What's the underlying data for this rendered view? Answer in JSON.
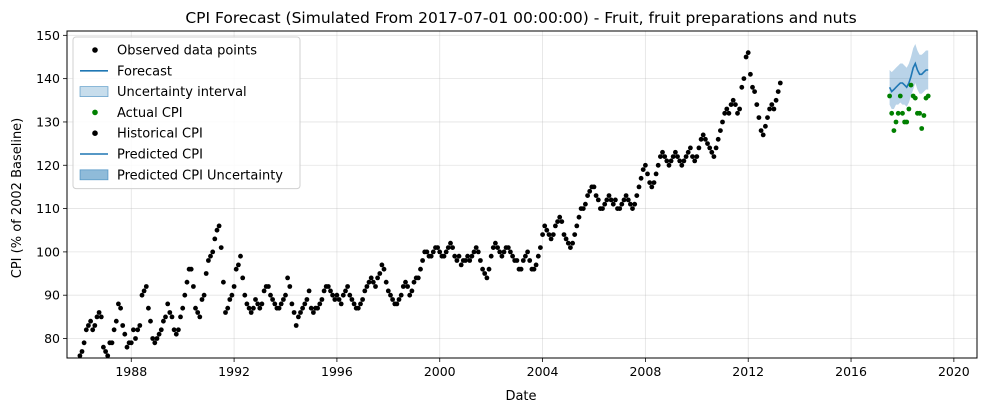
{
  "chart_data": {
    "type": "scatter",
    "title": "CPI Forecast (Simulated From 2017-07-01 00:00:00) - Fruit, fruit preparations and nuts",
    "xlabel": "Date",
    "ylabel": "CPI (% of 2002 Baseline)",
    "xlim": [
      1985.5,
      2020.9
    ],
    "ylim": [
      75.5,
      151
    ],
    "x_ticks": [
      1988,
      1992,
      1996,
      2000,
      2004,
      2008,
      2012,
      2016,
      2020
    ],
    "y_ticks": [
      80,
      90,
      100,
      110,
      120,
      130,
      140,
      150
    ],
    "grid": true,
    "legend_position": "top-left",
    "legend": [
      {
        "label": "Observed data points",
        "kind": "dot",
        "color": "#000000"
      },
      {
        "label": "Forecast",
        "kind": "line",
        "color": "#1f77b4"
      },
      {
        "label": "Uncertainty interval",
        "kind": "patch-light",
        "color": "#1f77b4"
      },
      {
        "label": "Actual CPI",
        "kind": "dot",
        "color": "#008000"
      },
      {
        "label": "Historical CPI",
        "kind": "dot",
        "color": "#000000"
      },
      {
        "label": "Predicted CPI",
        "kind": "line",
        "color": "#1f77b4"
      },
      {
        "label": "Predicted CPI Uncertainty",
        "kind": "patch-dark",
        "color": "#1f77b4"
      }
    ],
    "historical_x_start": 1986.0,
    "historical_x_step": 0.0833333,
    "historical_values": [
      76,
      77,
      79,
      82,
      83,
      84,
      82,
      83,
      85,
      86,
      85,
      78,
      77,
      76,
      79,
      79,
      82,
      84,
      88,
      87,
      83,
      81,
      78,
      79,
      79,
      82,
      80,
      82,
      83,
      90,
      91,
      92,
      87,
      84,
      80,
      79,
      80,
      81,
      82,
      84,
      85,
      88,
      86,
      85,
      82,
      81,
      82,
      85,
      87,
      90,
      93,
      96,
      96,
      92,
      87,
      86,
      85,
      89,
      90,
      95,
      98,
      99,
      100,
      103,
      105,
      106,
      101,
      93,
      86,
      87,
      89,
      90,
      92,
      96,
      97,
      99,
      94,
      90,
      88,
      87,
      86,
      87,
      89,
      88,
      87,
      88,
      91,
      92,
      92,
      90,
      89,
      88,
      87,
      87,
      88,
      89,
      90,
      94,
      92,
      88,
      86,
      83,
      85,
      86,
      87,
      88,
      89,
      91,
      87,
      86,
      87,
      87,
      88,
      89,
      91,
      92,
      92,
      91,
      90,
      89,
      90,
      89,
      88,
      90,
      91,
      92,
      90,
      89,
      88,
      87,
      87,
      88,
      89,
      91,
      92,
      93,
      94,
      93,
      92,
      94,
      95,
      97,
      96,
      93,
      91,
      90,
      89,
      88,
      88,
      89,
      90,
      92,
      93,
      92,
      90,
      91,
      93,
      94,
      94,
      96,
      98,
      100,
      100,
      99,
      99,
      100,
      101,
      101,
      100,
      99,
      99,
      100,
      101,
      102,
      101,
      99,
      98,
      99,
      97,
      98,
      98,
      99,
      98,
      99,
      100,
      101,
      100,
      98,
      96,
      95,
      94,
      96,
      99,
      101,
      102,
      101,
      100,
      99,
      100,
      101,
      101,
      100,
      99,
      98,
      98,
      96,
      96,
      98,
      99,
      100,
      98,
      96,
      96,
      97,
      99,
      101,
      104,
      106,
      105,
      104,
      103,
      104,
      106,
      107,
      108,
      107,
      104,
      103,
      102,
      101,
      102,
      104,
      106,
      108,
      110,
      110,
      111,
      113,
      114,
      115,
      115,
      113,
      112,
      110,
      110,
      111,
      112,
      113,
      112,
      111,
      112,
      110,
      110,
      111,
      112,
      113,
      112,
      111,
      110,
      111,
      113,
      115,
      117,
      119,
      120,
      118,
      116,
      115,
      116,
      118,
      120,
      122,
      123,
      122,
      121,
      120,
      121,
      122,
      123,
      122,
      121,
      120,
      121,
      122,
      123,
      124,
      122,
      121,
      122,
      124,
      126,
      127,
      126,
      125,
      124,
      123,
      122,
      124,
      126,
      128,
      130,
      132,
      133,
      132,
      134,
      135,
      134,
      132,
      133,
      138,
      140,
      145,
      146,
      141,
      138,
      137,
      134,
      131,
      128,
      127,
      129,
      131,
      133,
      134,
      133,
      135,
      137,
      139
    ],
    "forecast_x": [
      2017.5,
      2017.583,
      2017.667,
      2017.75,
      2017.833,
      2017.917,
      2018.0,
      2018.083,
      2018.167,
      2018.25,
      2018.333,
      2018.417,
      2018.5,
      2018.583,
      2018.667,
      2018.75,
      2018.833,
      2018.917,
      2019.0
    ],
    "forecast_values": [
      138,
      137,
      137.5,
      138,
      138.5,
      139,
      139,
      138.5,
      138,
      139,
      140.5,
      142.5,
      143.5,
      142,
      141,
      141,
      141.5,
      142,
      142
    ],
    "forecast_lower": [
      134,
      133,
      133,
      134,
      134,
      134.5,
      134,
      134,
      133.5,
      134.5,
      136,
      137.5,
      139,
      137.5,
      136.5,
      136.5,
      137,
      137.5,
      137.5
    ],
    "forecast_upper": [
      142,
      141.5,
      142,
      142.5,
      143,
      143.5,
      143.5,
      143,
      142.5,
      143.5,
      145,
      147,
      148,
      146.5,
      145.5,
      145.5,
      146,
      146.5,
      146.5
    ],
    "actual_x": [
      2017.5,
      2017.583,
      2017.667,
      2017.75,
      2017.833,
      2017.917,
      2018.0,
      2018.083,
      2018.167,
      2018.25,
      2018.333,
      2018.417,
      2018.5,
      2018.583,
      2018.667,
      2018.75,
      2018.833,
      2018.917,
      2019.0
    ],
    "actual_values": [
      136,
      132,
      128,
      130,
      132,
      136,
      132,
      130,
      130,
      133,
      138.5,
      136,
      135.5,
      132,
      132,
      128.5,
      131.5,
      135.5,
      136
    ]
  }
}
